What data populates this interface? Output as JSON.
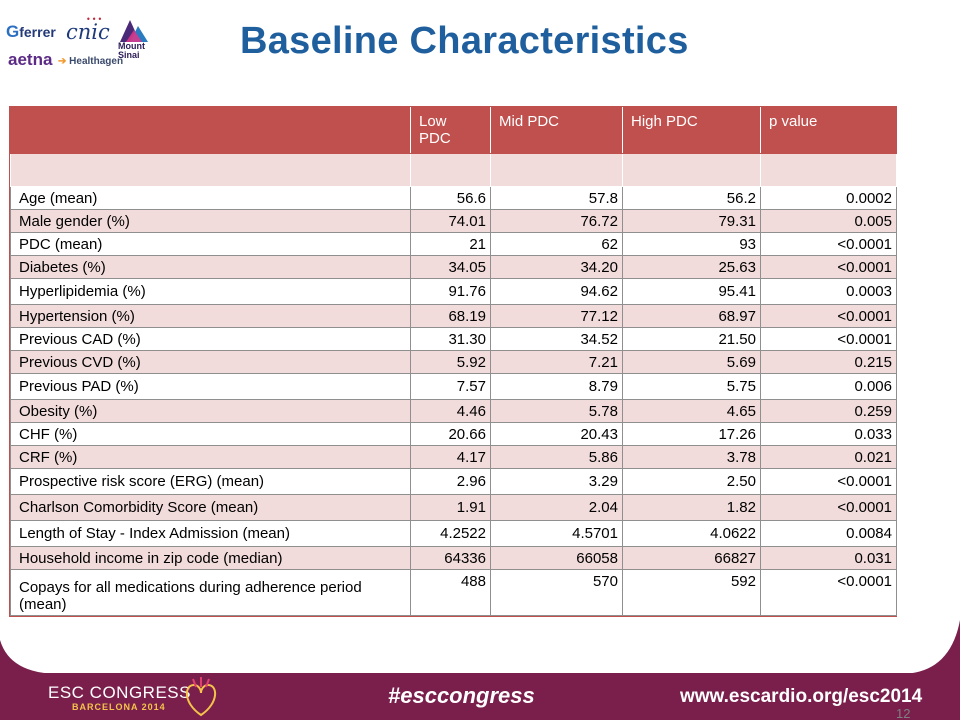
{
  "title": "Baseline Characteristics",
  "logos": {
    "ferrer": "ferrer",
    "cnic": "cnic",
    "mount_sinai": [
      "Mount",
      "Sinai"
    ],
    "aetna": "aetna",
    "healthagen": "Healthagen"
  },
  "table": {
    "headers": [
      "",
      "Low PDC",
      "Mid PDC",
      "High PDC",
      "p value"
    ],
    "rows": [
      {
        "label": "Age (mean)",
        "low": "56.6",
        "mid": "57.8",
        "high": "56.2",
        "p": "0.0002"
      },
      {
        "label": "Male gender (%)",
        "low": "74.01",
        "mid": "76.72",
        "high": "79.31",
        "p": "0.005"
      },
      {
        "label": "PDC (mean)",
        "low": "21",
        "mid": "62",
        "high": "93",
        "p": "<0.0001"
      },
      {
        "label": "Diabetes (%)",
        "low": "34.05",
        "mid": "34.20",
        "high": "25.63",
        "p": "<0.0001"
      },
      {
        "label": "Hyperlipidemia (%)",
        "low": "91.76",
        "mid": "94.62",
        "high": "95.41",
        "p": "0.0003"
      },
      {
        "label": "Hypertension (%)",
        "low": "68.19",
        "mid": "77.12",
        "high": "68.97",
        "p": "<0.0001"
      },
      {
        "label": "Previous CAD (%)",
        "low": "31.30",
        "mid": "34.52",
        "high": "21.50",
        "p": "<0.0001"
      },
      {
        "label": "Previous CVD (%)",
        "low": "5.92",
        "mid": "7.21",
        "high": "5.69",
        "p": "0.215"
      },
      {
        "label": "Previous PAD (%)",
        "low": "7.57",
        "mid": "8.79",
        "high": "5.75",
        "p": "0.006"
      },
      {
        "label": "Obesity (%)",
        "low": "4.46",
        "mid": "5.78",
        "high": "4.65",
        "p": "0.259"
      },
      {
        "label": "CHF (%)",
        "low": "20.66",
        "mid": "20.43",
        "high": "17.26",
        "p": "0.033"
      },
      {
        "label": "CRF (%)",
        "low": "4.17",
        "mid": "5.86",
        "high": "3.78",
        "p": "0.021"
      },
      {
        "label": "Prospective risk score (ERG) (mean)",
        "low": "2.96",
        "mid": "3.29",
        "high": "2.50",
        "p": "<0.0001"
      },
      {
        "label": "Charlson Comorbidity Score (mean)",
        "low": "1.91",
        "mid": "2.04",
        "high": "1.82",
        "p": "<0.0001"
      },
      {
        "label": "Length of Stay - Index Admission (mean)",
        "low": "4.2522",
        "mid": "4.5701",
        "high": "4.0622",
        "p": "0.0084"
      },
      {
        "label": "Household income in zip code (median)",
        "low": "64336",
        "mid": "66058",
        "high": "66827",
        "p": "0.031"
      },
      {
        "label": "Copays for all medications during adherence period (mean)",
        "low": "488",
        "mid": "570",
        "high": "592",
        "p": "<0.0001"
      }
    ]
  },
  "footer": {
    "esc_logo": "ESC CONGRESS",
    "esc_sub": "BARCELONA 2014",
    "hashtag": "#esccongress",
    "url": "www.escardio.org/esc2014",
    "page_number": "12"
  },
  "colors": {
    "header_red": "#c0504d",
    "row_pink": "#f2dcdb",
    "title_blue": "#1f5f9e",
    "footer_maroon": "#7a1f4c"
  }
}
